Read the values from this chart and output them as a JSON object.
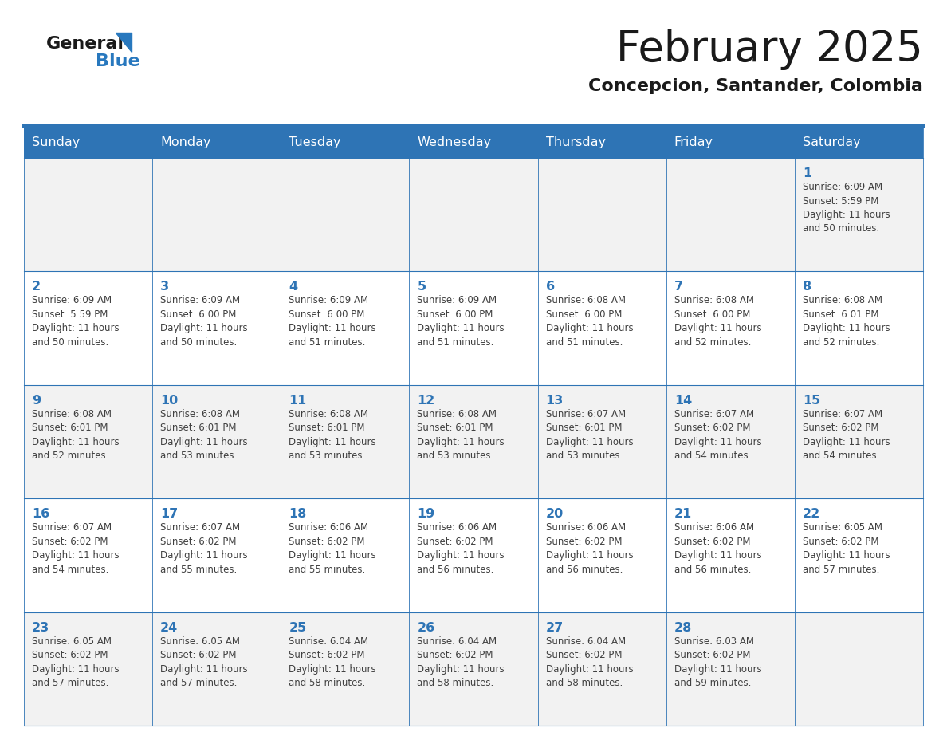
{
  "title": "February 2025",
  "subtitle": "Concepcion, Santander, Colombia",
  "header_bg": "#2E74B5",
  "header_text_color": "#FFFFFF",
  "cell_bg_odd": "#F2F2F2",
  "cell_bg_even": "#FFFFFF",
  "border_color": "#2E74B5",
  "line_color": "#2E74B5",
  "day_names": [
    "Sunday",
    "Monday",
    "Tuesday",
    "Wednesday",
    "Thursday",
    "Friday",
    "Saturday"
  ],
  "title_color": "#1A1A1A",
  "subtitle_color": "#1A1A1A",
  "day_number_color": "#2E74B5",
  "info_text_color": "#404040",
  "logo_general_color": "#1A1A1A",
  "logo_blue_color": "#2878BE",
  "weeks": [
    [
      {
        "day": 0,
        "info": ""
      },
      {
        "day": 0,
        "info": ""
      },
      {
        "day": 0,
        "info": ""
      },
      {
        "day": 0,
        "info": ""
      },
      {
        "day": 0,
        "info": ""
      },
      {
        "day": 0,
        "info": ""
      },
      {
        "day": 1,
        "info": "Sunrise: 6:09 AM\nSunset: 5:59 PM\nDaylight: 11 hours\nand 50 minutes."
      }
    ],
    [
      {
        "day": 2,
        "info": "Sunrise: 6:09 AM\nSunset: 5:59 PM\nDaylight: 11 hours\nand 50 minutes."
      },
      {
        "day": 3,
        "info": "Sunrise: 6:09 AM\nSunset: 6:00 PM\nDaylight: 11 hours\nand 50 minutes."
      },
      {
        "day": 4,
        "info": "Sunrise: 6:09 AM\nSunset: 6:00 PM\nDaylight: 11 hours\nand 51 minutes."
      },
      {
        "day": 5,
        "info": "Sunrise: 6:09 AM\nSunset: 6:00 PM\nDaylight: 11 hours\nand 51 minutes."
      },
      {
        "day": 6,
        "info": "Sunrise: 6:08 AM\nSunset: 6:00 PM\nDaylight: 11 hours\nand 51 minutes."
      },
      {
        "day": 7,
        "info": "Sunrise: 6:08 AM\nSunset: 6:00 PM\nDaylight: 11 hours\nand 52 minutes."
      },
      {
        "day": 8,
        "info": "Sunrise: 6:08 AM\nSunset: 6:01 PM\nDaylight: 11 hours\nand 52 minutes."
      }
    ],
    [
      {
        "day": 9,
        "info": "Sunrise: 6:08 AM\nSunset: 6:01 PM\nDaylight: 11 hours\nand 52 minutes."
      },
      {
        "day": 10,
        "info": "Sunrise: 6:08 AM\nSunset: 6:01 PM\nDaylight: 11 hours\nand 53 minutes."
      },
      {
        "day": 11,
        "info": "Sunrise: 6:08 AM\nSunset: 6:01 PM\nDaylight: 11 hours\nand 53 minutes."
      },
      {
        "day": 12,
        "info": "Sunrise: 6:08 AM\nSunset: 6:01 PM\nDaylight: 11 hours\nand 53 minutes."
      },
      {
        "day": 13,
        "info": "Sunrise: 6:07 AM\nSunset: 6:01 PM\nDaylight: 11 hours\nand 53 minutes."
      },
      {
        "day": 14,
        "info": "Sunrise: 6:07 AM\nSunset: 6:02 PM\nDaylight: 11 hours\nand 54 minutes."
      },
      {
        "day": 15,
        "info": "Sunrise: 6:07 AM\nSunset: 6:02 PM\nDaylight: 11 hours\nand 54 minutes."
      }
    ],
    [
      {
        "day": 16,
        "info": "Sunrise: 6:07 AM\nSunset: 6:02 PM\nDaylight: 11 hours\nand 54 minutes."
      },
      {
        "day": 17,
        "info": "Sunrise: 6:07 AM\nSunset: 6:02 PM\nDaylight: 11 hours\nand 55 minutes."
      },
      {
        "day": 18,
        "info": "Sunrise: 6:06 AM\nSunset: 6:02 PM\nDaylight: 11 hours\nand 55 minutes."
      },
      {
        "day": 19,
        "info": "Sunrise: 6:06 AM\nSunset: 6:02 PM\nDaylight: 11 hours\nand 56 minutes."
      },
      {
        "day": 20,
        "info": "Sunrise: 6:06 AM\nSunset: 6:02 PM\nDaylight: 11 hours\nand 56 minutes."
      },
      {
        "day": 21,
        "info": "Sunrise: 6:06 AM\nSunset: 6:02 PM\nDaylight: 11 hours\nand 56 minutes."
      },
      {
        "day": 22,
        "info": "Sunrise: 6:05 AM\nSunset: 6:02 PM\nDaylight: 11 hours\nand 57 minutes."
      }
    ],
    [
      {
        "day": 23,
        "info": "Sunrise: 6:05 AM\nSunset: 6:02 PM\nDaylight: 11 hours\nand 57 minutes."
      },
      {
        "day": 24,
        "info": "Sunrise: 6:05 AM\nSunset: 6:02 PM\nDaylight: 11 hours\nand 57 minutes."
      },
      {
        "day": 25,
        "info": "Sunrise: 6:04 AM\nSunset: 6:02 PM\nDaylight: 11 hours\nand 58 minutes."
      },
      {
        "day": 26,
        "info": "Sunrise: 6:04 AM\nSunset: 6:02 PM\nDaylight: 11 hours\nand 58 minutes."
      },
      {
        "day": 27,
        "info": "Sunrise: 6:04 AM\nSunset: 6:02 PM\nDaylight: 11 hours\nand 58 minutes."
      },
      {
        "day": 28,
        "info": "Sunrise: 6:03 AM\nSunset: 6:02 PM\nDaylight: 11 hours\nand 59 minutes."
      },
      {
        "day": 0,
        "info": ""
      }
    ]
  ]
}
